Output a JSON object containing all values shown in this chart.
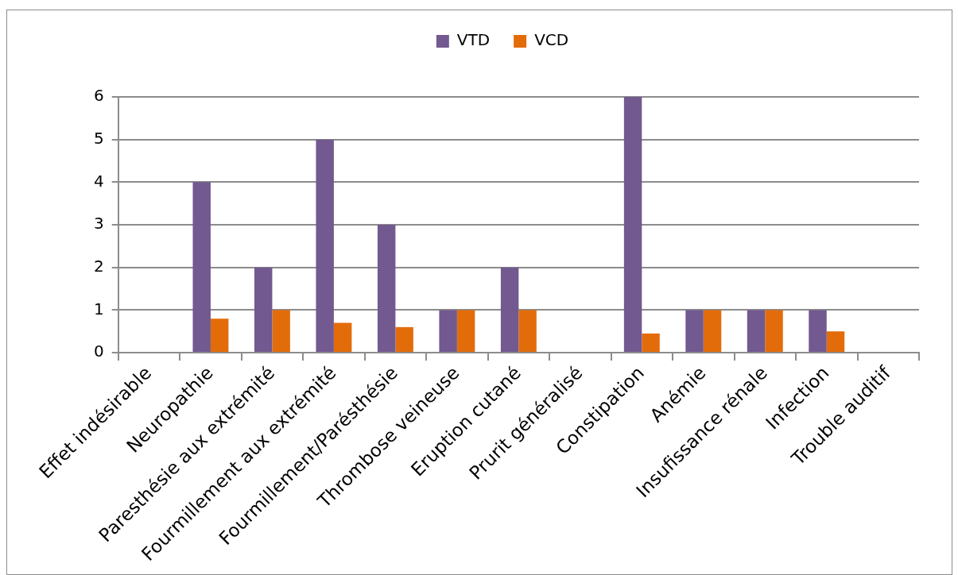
{
  "chart_data": {
    "type": "bar",
    "categories": [
      "Effet indésirable",
      "Neuropathie",
      "Paresthésie aux extrémité",
      "Fourmillement aux extrémité",
      "Fourmillement/Parésthésie",
      "Thrombose veineuse",
      "Eruption cutané",
      "Prurit généralisé",
      "Constipation",
      "Anémie",
      "Insufissance rénale",
      "Infection",
      "Trouble auditif"
    ],
    "series": [
      {
        "name": "VTD",
        "color": "#725990",
        "values": [
          0,
          4,
          2,
          5,
          3,
          1,
          2,
          0,
          6,
          1,
          1,
          1,
          0
        ]
      },
      {
        "name": "VCD",
        "color": "#e36c0a",
        "values": [
          0,
          0.8,
          1,
          0.7,
          0.6,
          1,
          1,
          0,
          0.45,
          1,
          1,
          0.5,
          0
        ]
      }
    ],
    "ylim": [
      0,
      6
    ],
    "yticks": [
      0,
      1,
      2,
      3,
      4,
      5,
      6
    ],
    "grid": "y",
    "legend": "top"
  }
}
